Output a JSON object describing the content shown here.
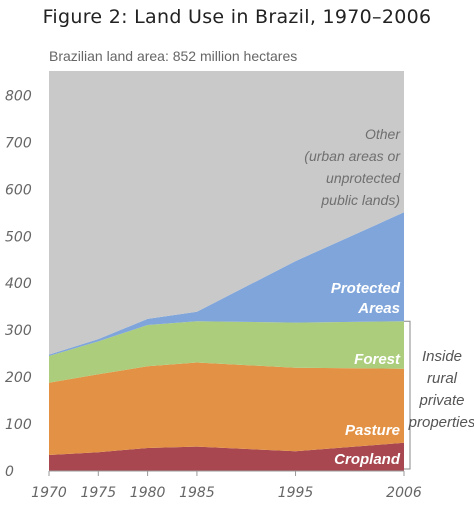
{
  "figure_title": "Figure 2: Land Use in Brazil, 1970–2006",
  "subtitle": "Brazilian land area: 852 million hectares",
  "annotations": {
    "other": [
      "Other",
      "(urban areas or",
      "unprotected",
      "public lands)"
    ],
    "protected": [
      "Protected",
      "Areas"
    ],
    "forest": "Forest",
    "pasture": "Pasture",
    "cropland": "Cropland",
    "bracket_label": [
      "Inside",
      "rural",
      "private",
      "properties"
    ]
  },
  "colors": {
    "other": "#c9c9c9",
    "protected": "#7fa5da",
    "forest": "#acce7c",
    "pasture": "#e39245",
    "cropland": "#a8474f",
    "axis": "#999999",
    "bracket": "#888888"
  },
  "chart_data": {
    "type": "area",
    "stacked": true,
    "title": "Figure 2: Land Use in Brazil, 1970–2006",
    "subtitle": "Brazilian land area: 852 million hectares",
    "x": [
      1970,
      1975,
      1980,
      1985,
      1995,
      2006
    ],
    "ylim": [
      0,
      852
    ],
    "xlim": [
      1970,
      2006
    ],
    "yticks": [
      0,
      100,
      200,
      300,
      400,
      500,
      600,
      700,
      800
    ],
    "xticks": [
      1970,
      1975,
      1980,
      1985,
      1995,
      2006
    ],
    "grid": false,
    "series": [
      {
        "name": "Cropland",
        "values": [
          34,
          40,
          49,
          52,
          42,
          60
        ]
      },
      {
        "name": "Pasture",
        "values": [
          154,
          166,
          174,
          179,
          178,
          158
        ]
      },
      {
        "name": "Forest",
        "values": [
          57,
          70,
          88,
          88,
          96,
          101
        ]
      },
      {
        "name": "Protected Areas",
        "values": [
          3,
          5,
          13,
          20,
          131,
          232
        ]
      },
      {
        "name": "Other (urban areas or unprotected public lands)",
        "values": [
          604,
          571,
          528,
          513,
          405,
          301
        ]
      }
    ]
  }
}
